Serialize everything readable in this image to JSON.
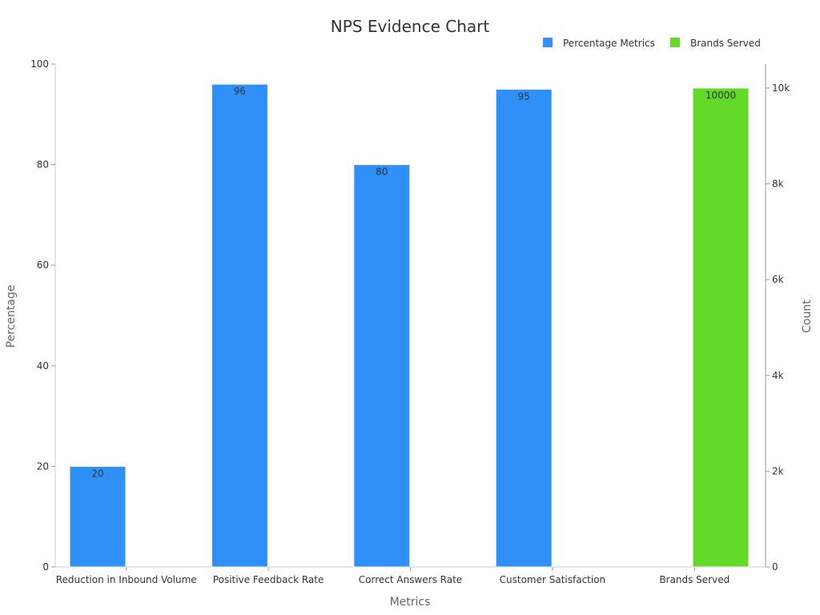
{
  "chart_data": {
    "type": "bar",
    "title": "NPS Evidence Chart",
    "xlabel": "Metrics",
    "ylabel": "Percentage",
    "y2label": "Count",
    "categories": [
      "Reduction in Inbound Volume",
      "Positive Feedback Rate",
      "Correct Answers Rate",
      "Customer Satisfaction",
      "Brands Served"
    ],
    "ylim": [
      0,
      100
    ],
    "y2lim": [
      0,
      10500
    ],
    "yticks": [
      0,
      20,
      40,
      60,
      80,
      100
    ],
    "y2ticks": [
      {
        "value": 0,
        "label": "0"
      },
      {
        "value": 2000,
        "label": "2k"
      },
      {
        "value": 4000,
        "label": "4k"
      },
      {
        "value": 6000,
        "label": "6k"
      },
      {
        "value": 8000,
        "label": "8k"
      },
      {
        "value": 10000,
        "label": "10k"
      }
    ],
    "grid": false,
    "legend_position": "top-right",
    "series": [
      {
        "name": "Percentage Metrics",
        "axis": "left",
        "color": "#2f91f7",
        "values": [
          20,
          96,
          80,
          95,
          null
        ]
      },
      {
        "name": "Brands Served",
        "axis": "right",
        "color": "#63d92a",
        "values": [
          null,
          null,
          null,
          null,
          10000
        ]
      }
    ]
  }
}
